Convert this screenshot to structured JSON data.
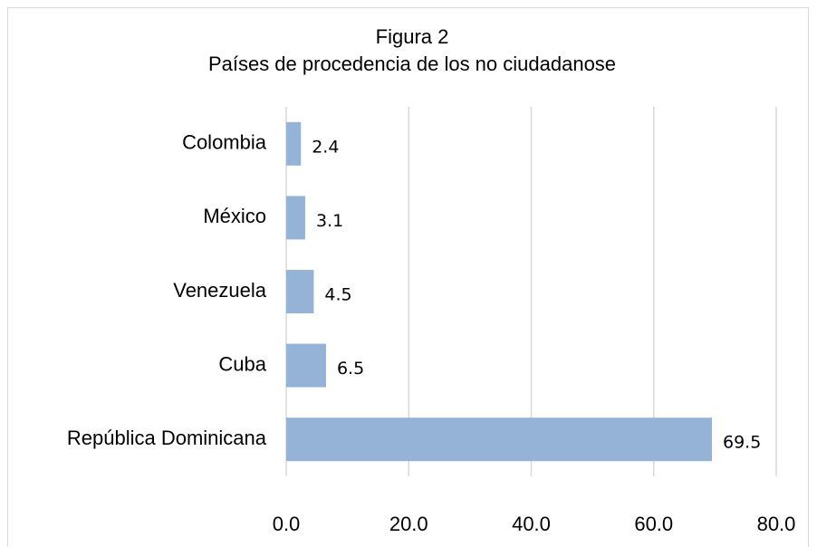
{
  "chart_data": {
    "type": "bar",
    "orientation": "horizontal",
    "title": "Figura 2",
    "subtitle": "Países de procedencia de los no ciudadanose",
    "categories": [
      "Colombia",
      "México",
      "Venezuela",
      "Cuba",
      "República Dominicana"
    ],
    "values": [
      2.4,
      3.1,
      4.5,
      6.5,
      69.5
    ],
    "color": "#95b3d7",
    "xlim": [
      0,
      80
    ],
    "xticks": [
      {
        "value": 0,
        "label": "0.0"
      },
      {
        "value": 20,
        "label": "20.0"
      },
      {
        "value": 40,
        "label": "40.0"
      },
      {
        "value": 60,
        "label": "60.0"
      },
      {
        "value": 80,
        "label": "80.0"
      }
    ],
    "grid": true
  }
}
